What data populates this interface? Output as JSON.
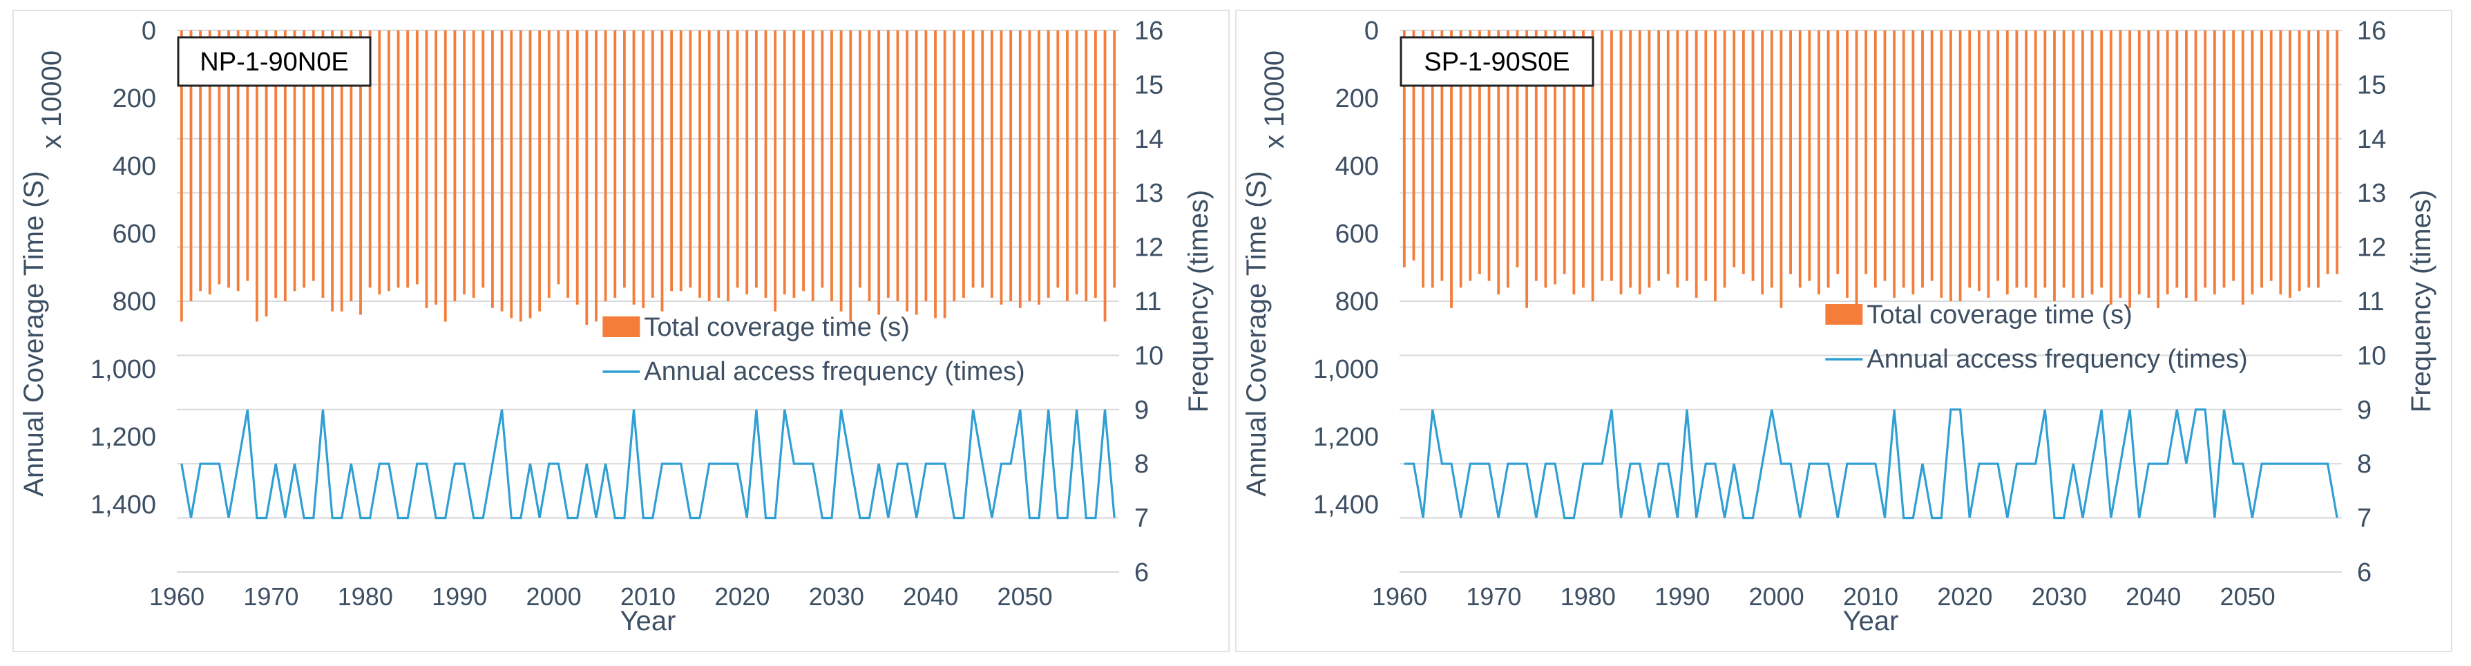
{
  "chart_data": [
    {
      "type": "bar+line",
      "title": "NP-1-90N0E",
      "xlabel": "Year",
      "ylabel": "Annual Coverage Time (S)",
      "y_multiplier": "x 10000",
      "y2label": "Frequency (times)",
      "ylim": [
        0,
        1600
      ],
      "y_reversed": true,
      "y_ticks": [
        "0",
        "200",
        "400",
        "600",
        "800",
        "1,000",
        "1,200",
        "1,400"
      ],
      "y2lim": [
        6,
        16
      ],
      "y2_ticks": [
        "6",
        "7",
        "8",
        "9",
        "10",
        "11",
        "12",
        "13",
        "14",
        "15",
        "16"
      ],
      "x_ticks": [
        "1960",
        "1970",
        "1980",
        "1990",
        "2000",
        "2010",
        "2020",
        "2030",
        "2040",
        "2050"
      ],
      "x_start": 1960,
      "series": [
        {
          "name": "Total coverage time (s)",
          "color": "#f47d3b",
          "axis": "left",
          "kind": "bar",
          "values": [
            860,
            800,
            770,
            780,
            750,
            760,
            770,
            740,
            860,
            845,
            790,
            800,
            770,
            760,
            740,
            790,
            830,
            830,
            800,
            840,
            760,
            780,
            770,
            760,
            760,
            750,
            820,
            810,
            860,
            800,
            780,
            790,
            760,
            820,
            830,
            850,
            860,
            850,
            830,
            790,
            750,
            790,
            810,
            870,
            860,
            800,
            790,
            760,
            810,
            820,
            790,
            830,
            770,
            770,
            760,
            790,
            800,
            790,
            800,
            760,
            780,
            760,
            790,
            830,
            780,
            790,
            770,
            800,
            760,
            800,
            830,
            860,
            760,
            800,
            840,
            790,
            800,
            830,
            840,
            800,
            850,
            850,
            800,
            790,
            760,
            760,
            790,
            810,
            800,
            820,
            800,
            810,
            790,
            760,
            800,
            780,
            800,
            790,
            860,
            760
          ]
        },
        {
          "name": "Annual access frequency (times)",
          "color": "#2f9fd4",
          "axis": "right",
          "kind": "line",
          "values": [
            8,
            7,
            8,
            8,
            8,
            7,
            8,
            9,
            7,
            7,
            8,
            7,
            8,
            7,
            7,
            9,
            7,
            7,
            8,
            7,
            7,
            8,
            8,
            7,
            7,
            8,
            8,
            7,
            7,
            8,
            8,
            7,
            7,
            8,
            9,
            7,
            7,
            8,
            7,
            8,
            8,
            7,
            7,
            8,
            7,
            8,
            7,
            7,
            9,
            7,
            7,
            8,
            8,
            8,
            7,
            7,
            8,
            8,
            8,
            8,
            7,
            9,
            7,
            7,
            9,
            8,
            8,
            8,
            7,
            7,
            9,
            8,
            7,
            7,
            8,
            7,
            8,
            8,
            7,
            8,
            8,
            8,
            7,
            7,
            9,
            8,
            7,
            8,
            8,
            9,
            7,
            7,
            9,
            7,
            7,
            9,
            7,
            7,
            9,
            7
          ]
        }
      ]
    },
    {
      "type": "bar+line",
      "title": "SP-1-90S0E",
      "xlabel": "Year",
      "ylabel": "Annual Coverage Time (S)",
      "y_multiplier": "x 10000",
      "y2label": "Frequency (times)",
      "ylim": [
        0,
        1600
      ],
      "y_reversed": true,
      "y_ticks": [
        "0",
        "200",
        "400",
        "600",
        "800",
        "1,000",
        "1,200",
        "1,400"
      ],
      "y2lim": [
        6,
        16
      ],
      "y2_ticks": [
        "6",
        "7",
        "8",
        "9",
        "10",
        "11",
        "12",
        "13",
        "14",
        "15",
        "16"
      ],
      "x_ticks": [
        "1960",
        "1970",
        "1980",
        "1990",
        "2000",
        "2010",
        "2020",
        "2030",
        "2040",
        "2050"
      ],
      "x_start": 1960,
      "series": [
        {
          "name": "Total coverage time (s)",
          "color": "#f47d3b",
          "axis": "left",
          "kind": "bar",
          "values": [
            700,
            680,
            760,
            760,
            740,
            820,
            760,
            740,
            720,
            740,
            780,
            760,
            700,
            820,
            740,
            760,
            750,
            720,
            780,
            760,
            800,
            740,
            740,
            780,
            760,
            780,
            760,
            740,
            720,
            760,
            740,
            790,
            740,
            800,
            760,
            700,
            720,
            740,
            780,
            760,
            820,
            720,
            760,
            740,
            780,
            760,
            720,
            790,
            830,
            720,
            760,
            740,
            790,
            760,
            780,
            760,
            740,
            790,
            800,
            800,
            760,
            770,
            790,
            740,
            780,
            760,
            760,
            790,
            760,
            800,
            760,
            790,
            790,
            780,
            760,
            810,
            790,
            820,
            780,
            790,
            820,
            780,
            760,
            790,
            800,
            760,
            780,
            760,
            740,
            810,
            780,
            760,
            740,
            780,
            790,
            770,
            760,
            760,
            720,
            720
          ]
        },
        {
          "name": "Annual access frequency (times)",
          "color": "#2f9fd4",
          "axis": "right",
          "kind": "line",
          "values": [
            8,
            8,
            7,
            9,
            8,
            8,
            7,
            8,
            8,
            8,
            7,
            8,
            8,
            8,
            7,
            8,
            8,
            7,
            7,
            8,
            8,
            8,
            9,
            7,
            8,
            8,
            7,
            8,
            8,
            7,
            9,
            7,
            8,
            8,
            7,
            8,
            7,
            7,
            8,
            9,
            8,
            8,
            7,
            8,
            8,
            8,
            7,
            8,
            8,
            8,
            8,
            7,
            9,
            7,
            7,
            8,
            7,
            7,
            9,
            9,
            7,
            8,
            8,
            8,
            7,
            8,
            8,
            8,
            9,
            7,
            7,
            8,
            7,
            8,
            9,
            7,
            8,
            9,
            7,
            8,
            8,
            8,
            9,
            8,
            9,
            9,
            7,
            9,
            8,
            8,
            7,
            8,
            8,
            8,
            8,
            8,
            8,
            8,
            8,
            7
          ]
        }
      ]
    }
  ]
}
